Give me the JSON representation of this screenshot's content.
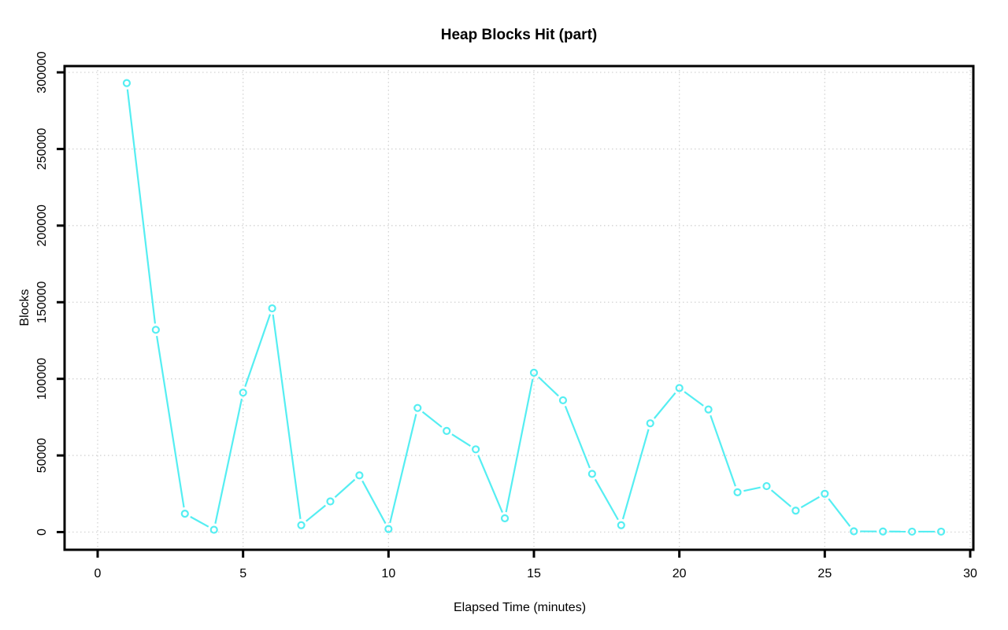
{
  "chart_data": {
    "type": "line",
    "title": "Heap Blocks Hit (part)",
    "xlabel": "Elapsed Time (minutes)",
    "ylabel": "Blocks",
    "x": [
      1,
      2,
      3,
      4,
      5,
      6,
      7,
      8,
      9,
      10,
      11,
      12,
      13,
      14,
      15,
      16,
      17,
      18,
      19,
      20,
      21,
      22,
      23,
      24,
      25,
      26,
      27,
      28,
      29
    ],
    "series": [
      {
        "name": "heap-blocks-hit",
        "color": "#55EEF2",
        "marker": "open-circle",
        "values": [
          293000,
          132000,
          12000,
          1500,
          91000,
          146000,
          4500,
          20000,
          37000,
          2000,
          81000,
          66000,
          54000,
          9000,
          104000,
          86000,
          38000,
          4500,
          71000,
          94000,
          80000,
          26000,
          30000,
          14000,
          25000,
          500,
          400,
          300,
          300
        ]
      }
    ],
    "xticks": [
      0,
      5,
      10,
      15,
      20,
      25,
      30
    ],
    "xtick_labels": [
      "0",
      "5",
      "10",
      "15",
      "20",
      "25",
      "30"
    ],
    "yticks": [
      0,
      50000,
      100000,
      150000,
      200000,
      250000,
      300000
    ],
    "ytick_labels": [
      "0",
      "50000",
      "100000",
      "150000",
      "200000",
      "250000",
      "300000"
    ],
    "xlim": [
      0,
      30
    ],
    "ylim": [
      0,
      300000
    ],
    "grid": "dotted",
    "legend_position": "none",
    "colors": {
      "line": "#55EEF2",
      "grid": "#D3D3D3",
      "frame": "#000000",
      "text": "#000000",
      "background": "#FFFFFF"
    }
  }
}
